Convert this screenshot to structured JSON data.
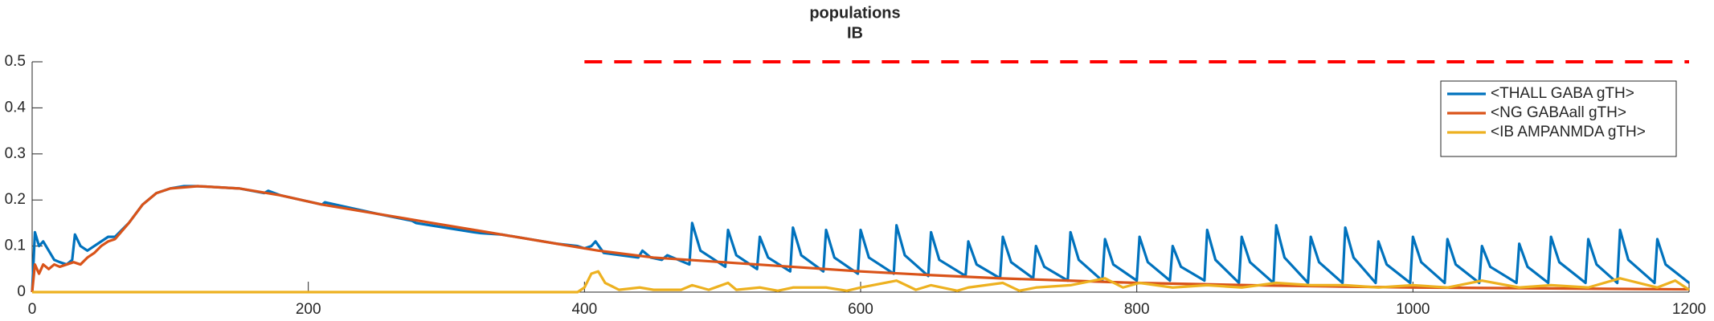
{
  "chart_data": {
    "type": "line",
    "title": [
      "populations",
      "IB"
    ],
    "xlim": [
      0,
      1200
    ],
    "xticks": [
      0,
      200,
      400,
      600,
      800,
      1000,
      1200
    ],
    "ylim": [
      0,
      0.5
    ],
    "yticks": [
      0,
      0.1,
      0.2,
      0.3,
      0.4,
      0.5
    ],
    "grid": false,
    "legend": "northeast",
    "series": [
      {
        "name": "<THALL GABA gTH>",
        "color": "#0072bd",
        "x": [
          0,
          2,
          5,
          8,
          12,
          16,
          20,
          25,
          29,
          31,
          35,
          40,
          45,
          50,
          55,
          60,
          70,
          80,
          90,
          100,
          110,
          120,
          150,
          168,
          171,
          180,
          210,
          212,
          250,
          275,
          278,
          320,
          325,
          340,
          380,
          395,
          400,
          405,
          408,
          414,
          439,
          442,
          448,
          456,
          460,
          476,
          478,
          484,
          502,
          504,
          510,
          525,
          527,
          533,
          549,
          551,
          557,
          573,
          575,
          581,
          598,
          600,
          606,
          624,
          626,
          632,
          649,
          651,
          657,
          676,
          678,
          684,
          701,
          703,
          709,
          725,
          727,
          733,
          750,
          752,
          758,
          775,
          777,
          783,
          800,
          802,
          808,
          824,
          826,
          832,
          849,
          851,
          857,
          874,
          876,
          882,
          899,
          901,
          907,
          924,
          926,
          932,
          949,
          951,
          957,
          973,
          975,
          981,
          998,
          1000,
          1006,
          1023,
          1025,
          1031,
          1048,
          1050,
          1056,
          1075,
          1077,
          1083,
          1098,
          1100,
          1106,
          1125,
          1127,
          1133,
          1148,
          1150,
          1156,
          1175,
          1177,
          1183,
          1200
        ],
        "values": [
          0,
          0.13,
          0.1,
          0.11,
          0.09,
          0.07,
          0.065,
          0.06,
          0.07,
          0.125,
          0.1,
          0.09,
          0.1,
          0.11,
          0.12,
          0.12,
          0.15,
          0.19,
          0.215,
          0.225,
          0.23,
          0.23,
          0.225,
          0.215,
          0.22,
          0.21,
          0.19,
          0.195,
          0.17,
          0.155,
          0.15,
          0.13,
          0.128,
          0.125,
          0.105,
          0.1,
          0.095,
          0.1,
          0.11,
          0.085,
          0.075,
          0.09,
          0.075,
          0.07,
          0.08,
          0.06,
          0.15,
          0.09,
          0.055,
          0.135,
          0.08,
          0.05,
          0.12,
          0.075,
          0.045,
          0.14,
          0.08,
          0.045,
          0.135,
          0.075,
          0.04,
          0.135,
          0.075,
          0.04,
          0.145,
          0.08,
          0.035,
          0.13,
          0.07,
          0.035,
          0.11,
          0.06,
          0.03,
          0.12,
          0.065,
          0.03,
          0.1,
          0.055,
          0.025,
          0.13,
          0.07,
          0.025,
          0.115,
          0.06,
          0.025,
          0.12,
          0.065,
          0.025,
          0.1,
          0.055,
          0.025,
          0.135,
          0.07,
          0.02,
          0.12,
          0.065,
          0.02,
          0.145,
          0.075,
          0.02,
          0.12,
          0.065,
          0.02,
          0.14,
          0.075,
          0.02,
          0.11,
          0.06,
          0.02,
          0.12,
          0.065,
          0.02,
          0.115,
          0.06,
          0.02,
          0.1,
          0.055,
          0.02,
          0.105,
          0.055,
          0.02,
          0.12,
          0.065,
          0.02,
          0.115,
          0.06,
          0.02,
          0.135,
          0.07,
          0.02,
          0.115,
          0.06,
          0.02
        ]
      },
      {
        "name": "<NG GABAall gTH>",
        "color": "#d95319",
        "x": [
          0,
          2,
          5,
          8,
          12,
          16,
          20,
          25,
          30,
          35,
          40,
          45,
          50,
          55,
          60,
          70,
          80,
          90,
          100,
          120,
          150,
          180,
          210,
          250,
          290,
          330,
          370,
          410,
          450,
          500,
          550,
          600,
          650,
          700,
          750,
          800,
          850,
          900,
          950,
          1000,
          1100,
          1200
        ],
        "values": [
          0,
          0.06,
          0.04,
          0.06,
          0.05,
          0.06,
          0.055,
          0.06,
          0.065,
          0.06,
          0.075,
          0.085,
          0.1,
          0.11,
          0.115,
          0.15,
          0.19,
          0.215,
          0.225,
          0.23,
          0.225,
          0.21,
          0.19,
          0.17,
          0.15,
          0.13,
          0.11,
          0.09,
          0.075,
          0.065,
          0.055,
          0.045,
          0.037,
          0.03,
          0.025,
          0.02,
          0.017,
          0.014,
          0.012,
          0.01,
          0.008,
          0.006
        ]
      },
      {
        "name": "<IB AMPANMDA gTH>",
        "color": "#edb120",
        "x": [
          0,
          395,
          400,
          405,
          410,
          415,
          425,
          440,
          450,
          470,
          478,
          490,
          504,
          510,
          527,
          540,
          551,
          575,
          590,
          600,
          626,
          640,
          651,
          670,
          678,
          703,
          715,
          727,
          752,
          777,
          790,
          802,
          826,
          851,
          876,
          901,
          926,
          951,
          975,
          1000,
          1025,
          1050,
          1077,
          1100,
          1127,
          1150,
          1177,
          1190,
          1200
        ],
        "values": [
          0,
          0,
          0.01,
          0.04,
          0.045,
          0.02,
          0.005,
          0.01,
          0.005,
          0.005,
          0.015,
          0.005,
          0.02,
          0.005,
          0.01,
          0.003,
          0.01,
          0.01,
          0.003,
          0.01,
          0.025,
          0.005,
          0.015,
          0.003,
          0.01,
          0.02,
          0.003,
          0.01,
          0.015,
          0.03,
          0.01,
          0.02,
          0.01,
          0.015,
          0.01,
          0.02,
          0.015,
          0.015,
          0.01,
          0.015,
          0.01,
          0.025,
          0.01,
          0.015,
          0.01,
          0.03,
          0.01,
          0.025,
          0.005
        ]
      },
      {
        "color": "#ff0000",
        "style": "dashed",
        "x": [
          400,
          1200
        ],
        "values": [
          0.5,
          0.5
        ]
      }
    ]
  }
}
